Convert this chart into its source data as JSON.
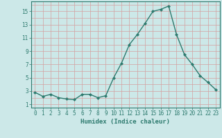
{
  "x": [
    0,
    1,
    2,
    3,
    4,
    5,
    6,
    7,
    8,
    9,
    10,
    11,
    12,
    13,
    14,
    15,
    16,
    17,
    18,
    19,
    20,
    21,
    22,
    23
  ],
  "y": [
    2.8,
    2.2,
    2.5,
    2.0,
    1.8,
    1.7,
    2.5,
    2.5,
    2.0,
    2.3,
    5.0,
    7.2,
    10.0,
    11.5,
    13.2,
    15.0,
    15.3,
    15.8,
    11.5,
    8.5,
    7.0,
    5.3,
    4.3,
    3.2
  ],
  "line_color": "#2d7a6e",
  "marker": "D",
  "markersize": 2.2,
  "bg_color": "#cce8e8",
  "grid_color": "#d4a0a0",
  "xlabel": "Humidex (Indice chaleur)",
  "xlim": [
    -0.5,
    23.5
  ],
  "ylim": [
    0.5,
    16.5
  ],
  "yticks": [
    1,
    3,
    5,
    7,
    9,
    11,
    13,
    15
  ],
  "xticks": [
    0,
    1,
    2,
    3,
    4,
    5,
    6,
    7,
    8,
    9,
    10,
    11,
    12,
    13,
    14,
    15,
    16,
    17,
    18,
    19,
    20,
    21,
    22,
    23
  ],
  "tick_fontsize": 5.5,
  "label_fontsize": 6.5,
  "linewidth": 1.0
}
